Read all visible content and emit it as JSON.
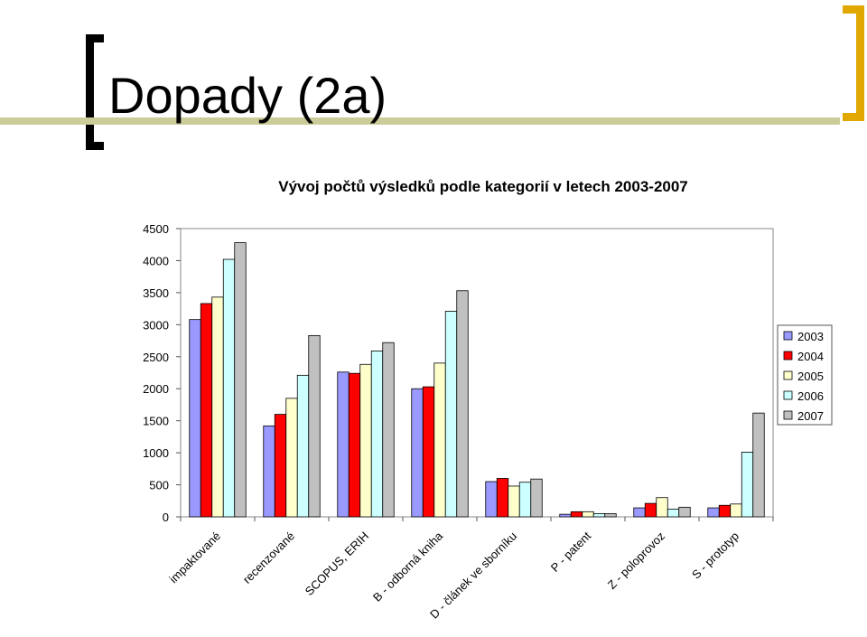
{
  "slide": {
    "title": "Dopady (2a)"
  },
  "colors": {
    "accent_rule": "#cccc9a",
    "accent_bracket": "#e0a800",
    "series": [
      "#9999ff",
      "#ff0000",
      "#ffffcc",
      "#ccffff",
      "#c0c0c0"
    ]
  },
  "chart_data": {
    "type": "bar",
    "title": "Vývoj počtů výsledků podle kategorií v letech 2003-2007",
    "categories": [
      "impaktované",
      "recenzované",
      "SCOPUS, ERIH",
      "B - odborná kniha",
      "D - článek ve sborníku",
      "P - patent",
      "Z - poloprovoz",
      "S - prototyp"
    ],
    "series": [
      {
        "name": "2003",
        "values": [
          3080,
          1420,
          2260,
          2000,
          550,
          40,
          140,
          140
        ]
      },
      {
        "name": "2004",
        "values": [
          3330,
          1600,
          2240,
          2030,
          600,
          80,
          210,
          180
        ]
      },
      {
        "name": "2005",
        "values": [
          3430,
          1850,
          2380,
          2400,
          480,
          80,
          300,
          200
        ]
      },
      {
        "name": "2006",
        "values": [
          4020,
          2210,
          2590,
          3210,
          540,
          50,
          120,
          1010
        ]
      },
      {
        "name": "2007",
        "values": [
          4280,
          2830,
          2720,
          3530,
          590,
          50,
          150,
          1620
        ]
      }
    ],
    "yticks": [
      "0",
      "500",
      "1000",
      "1500",
      "2000",
      "2500",
      "3000",
      "3500",
      "4000",
      "4500"
    ],
    "ylim": [
      0,
      4500
    ],
    "legend_position": "right",
    "grid": false
  }
}
